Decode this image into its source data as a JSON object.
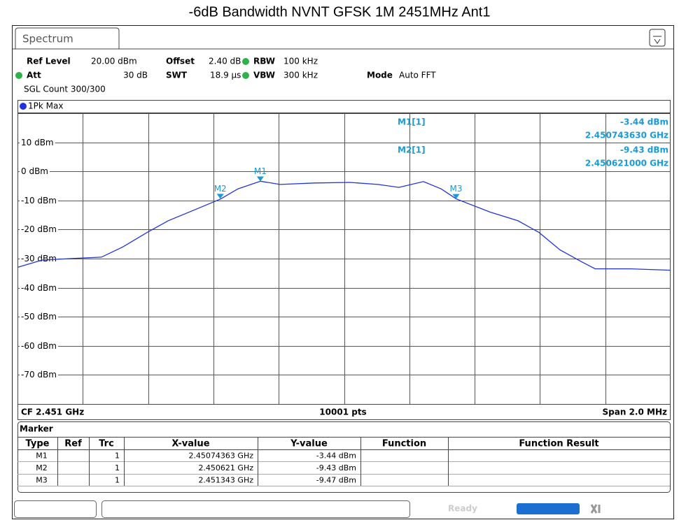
{
  "title": "-6dB Bandwidth NVNT GFSK 1M 2451MHz Ant1",
  "tab": "Spectrum",
  "settings": {
    "ref_level_label": "Ref Level",
    "ref_level": "20.00 dBm",
    "offset_label": "Offset",
    "offset": "2.40 dB",
    "rbw_label": "RBW",
    "rbw": "100 kHz",
    "att_label": "Att",
    "att": "30 dB",
    "swt_label": "SWT",
    "swt": "18.9 µs",
    "vbw_label": "VBW",
    "vbw": "300 kHz",
    "mode_label": "Mode",
    "mode": "Auto FFT",
    "sgl_count": "SGL Count 300/300"
  },
  "trace_label": "1Pk Max",
  "chart_data": {
    "type": "line",
    "x": [
      2.45,
      2.450075,
      2.450161,
      2.450257,
      2.450322,
      2.450397,
      2.450461,
      2.450547,
      2.450622,
      2.450675,
      2.450744,
      2.450804,
      2.450911,
      2.451018,
      2.451104,
      2.451168,
      2.451243,
      2.451297,
      2.451344,
      2.451447,
      2.451533,
      2.451597,
      2.451661,
      2.451726,
      2.451769,
      2.451876,
      2.452
    ],
    "series": [
      {
        "name": "1Pk Max",
        "color": "#2233dd",
        "values": [
          -33,
          -30.5,
          -30,
          -29.5,
          -26,
          -21,
          -17,
          -13,
          -9.5,
          -6,
          -3.4,
          -4.5,
          -4,
          -3.8,
          -4.5,
          -5.5,
          -3.5,
          -6,
          -9.5,
          -14,
          -17,
          -21,
          -27,
          -31,
          -33.5,
          -33.5,
          -34
        ]
      }
    ],
    "xlim": [
      2.45,
      2.452
    ],
    "ylim": [
      -80,
      20
    ],
    "yticks": [
      {
        "value": 10,
        "label": "10 dBm"
      },
      {
        "value": 0,
        "label": "0 dBm"
      },
      {
        "value": -10,
        "label": "-10 dBm"
      },
      {
        "value": -20,
        "label": "-20 dBm"
      },
      {
        "value": -30,
        "label": "-30 dBm"
      },
      {
        "value": -40,
        "label": "-40 dBm"
      },
      {
        "value": -50,
        "label": "-50 dBm"
      },
      {
        "value": -60,
        "label": "-60 dBm"
      },
      {
        "value": -70,
        "label": "-70 dBm"
      }
    ],
    "grid": true,
    "markers": [
      {
        "name": "M1",
        "x": 2.45074363,
        "y": -3.44
      },
      {
        "name": "M2",
        "x": 2.450621,
        "y": -9.43
      },
      {
        "name": "M3",
        "x": 2.451343,
        "y": -9.47
      }
    ],
    "marker_color": "#1a9ad6",
    "cf": "CF 2.451 GHz",
    "points": "10001 pts",
    "span": "Span 2.0 MHz"
  },
  "readout": [
    [
      "M1[1]",
      "-3.44 dBm",
      "2.450743630 GHz"
    ],
    [
      "M2[1]",
      "-9.43 dBm",
      "2.450621000 GHz"
    ]
  ],
  "marker_table": {
    "title": "Marker",
    "headers": [
      "Type",
      "Ref",
      "Trc",
      "X-value",
      "Y-value",
      "Function",
      "Function Result"
    ],
    "rows": [
      [
        "M1",
        "",
        "1",
        "2.45074363 GHz",
        "-3.44 dBm",
        "",
        ""
      ],
      [
        "M2",
        "",
        "1",
        "2.450621 GHz",
        "-9.43 dBm",
        "",
        ""
      ],
      [
        "M3",
        "",
        "1",
        "2.451343 GHz",
        "-9.47 dBm",
        "",
        ""
      ]
    ]
  },
  "status": "Ready"
}
